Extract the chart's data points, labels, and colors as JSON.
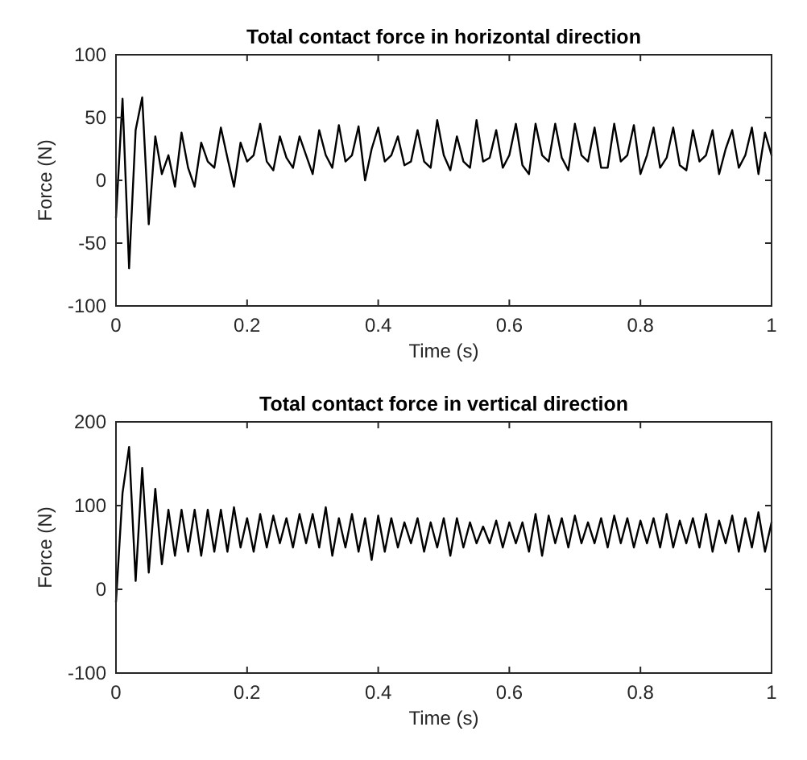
{
  "chart_data": [
    {
      "type": "line",
      "title": "Total contact force in horizontal direction",
      "xlabel": "Time (s)",
      "ylabel": "Force (N)",
      "xlim": [
        0,
        1
      ],
      "xticks": [
        0,
        0.2,
        0.4,
        0.6,
        0.8,
        1
      ],
      "ylim": [
        -100,
        100
      ],
      "yticks": [
        -100,
        -50,
        0,
        50,
        100
      ],
      "grid": false,
      "color": "#000000",
      "x": [
        0,
        0.01,
        0.02,
        0.03,
        0.04,
        0.05,
        0.06,
        0.07,
        0.08,
        0.09,
        0.1,
        0.11,
        0.12,
        0.13,
        0.14,
        0.15,
        0.16,
        0.17,
        0.18,
        0.19,
        0.2,
        0.21,
        0.22,
        0.23,
        0.24,
        0.25,
        0.26,
        0.27,
        0.28,
        0.29,
        0.3,
        0.31,
        0.32,
        0.33,
        0.34,
        0.35,
        0.36,
        0.37,
        0.38,
        0.39,
        0.4,
        0.41,
        0.42,
        0.43,
        0.44,
        0.45,
        0.46,
        0.47,
        0.48,
        0.49,
        0.5,
        0.51,
        0.52,
        0.53,
        0.54,
        0.55,
        0.56,
        0.57,
        0.58,
        0.59,
        0.6,
        0.61,
        0.62,
        0.63,
        0.64,
        0.65,
        0.66,
        0.67,
        0.68,
        0.69,
        0.7,
        0.71,
        0.72,
        0.73,
        0.74,
        0.75,
        0.76,
        0.77,
        0.78,
        0.79,
        0.8,
        0.81,
        0.82,
        0.83,
        0.84,
        0.85,
        0.86,
        0.87,
        0.88,
        0.89,
        0.9,
        0.91,
        0.92,
        0.93,
        0.94,
        0.95,
        0.96,
        0.97,
        0.98,
        0.99,
        1
      ],
      "values": [
        -30,
        65,
        -70,
        40,
        66,
        -35,
        35,
        5,
        20,
        -5,
        38,
        10,
        -5,
        30,
        15,
        10,
        42,
        18,
        -5,
        30,
        15,
        20,
        45,
        15,
        8,
        35,
        18,
        10,
        35,
        20,
        5,
        40,
        20,
        10,
        44,
        15,
        20,
        43,
        0,
        25,
        42,
        15,
        20,
        35,
        12,
        15,
        40,
        15,
        10,
        48,
        20,
        8,
        35,
        15,
        10,
        48,
        15,
        18,
        40,
        10,
        20,
        45,
        12,
        5,
        45,
        20,
        15,
        45,
        18,
        8,
        45,
        20,
        15,
        42,
        10,
        10,
        45,
        15,
        20,
        44,
        5,
        20,
        42,
        10,
        18,
        42,
        12,
        8,
        40,
        15,
        20,
        40,
        5,
        25,
        40,
        10,
        20,
        42,
        5,
        38,
        20
      ]
    },
    {
      "type": "line",
      "title": "Total contact force in vertical direction",
      "xlabel": "Time (s)",
      "ylabel": "Force (N)",
      "xlim": [
        0,
        1
      ],
      "xticks": [
        0,
        0.2,
        0.4,
        0.6,
        0.8,
        1
      ],
      "ylim": [
        -100,
        200
      ],
      "yticks": [
        -100,
        0,
        100,
        200
      ],
      "grid": false,
      "color": "#000000",
      "x": [
        0,
        0.01,
        0.02,
        0.03,
        0.04,
        0.05,
        0.06,
        0.07,
        0.08,
        0.09,
        0.1,
        0.11,
        0.12,
        0.13,
        0.14,
        0.15,
        0.16,
        0.17,
        0.18,
        0.19,
        0.2,
        0.21,
        0.22,
        0.23,
        0.24,
        0.25,
        0.26,
        0.27,
        0.28,
        0.29,
        0.3,
        0.31,
        0.32,
        0.33,
        0.34,
        0.35,
        0.36,
        0.37,
        0.38,
        0.39,
        0.4,
        0.41,
        0.42,
        0.43,
        0.44,
        0.45,
        0.46,
        0.47,
        0.48,
        0.49,
        0.5,
        0.51,
        0.52,
        0.53,
        0.54,
        0.55,
        0.56,
        0.57,
        0.58,
        0.59,
        0.6,
        0.61,
        0.62,
        0.63,
        0.64,
        0.65,
        0.66,
        0.67,
        0.68,
        0.69,
        0.7,
        0.71,
        0.72,
        0.73,
        0.74,
        0.75,
        0.76,
        0.77,
        0.78,
        0.79,
        0.8,
        0.81,
        0.82,
        0.83,
        0.84,
        0.85,
        0.86,
        0.87,
        0.88,
        0.89,
        0.9,
        0.91,
        0.92,
        0.93,
        0.94,
        0.95,
        0.96,
        0.97,
        0.98,
        0.99,
        1
      ],
      "values": [
        -15,
        115,
        170,
        10,
        145,
        20,
        120,
        30,
        95,
        40,
        95,
        45,
        95,
        40,
        95,
        45,
        95,
        45,
        98,
        50,
        85,
        45,
        90,
        50,
        88,
        55,
        85,
        50,
        90,
        55,
        90,
        50,
        98,
        40,
        85,
        50,
        90,
        45,
        85,
        35,
        88,
        45,
        85,
        50,
        80,
        55,
        85,
        45,
        80,
        50,
        85,
        40,
        85,
        50,
        80,
        55,
        75,
        55,
        82,
        50,
        80,
        55,
        80,
        45,
        90,
        40,
        88,
        55,
        85,
        50,
        88,
        55,
        80,
        55,
        85,
        50,
        88,
        55,
        85,
        50,
        82,
        55,
        85,
        50,
        90,
        50,
        82,
        55,
        85,
        50,
        90,
        45,
        82,
        55,
        88,
        45,
        85,
        50,
        92,
        45,
        80
      ]
    }
  ]
}
